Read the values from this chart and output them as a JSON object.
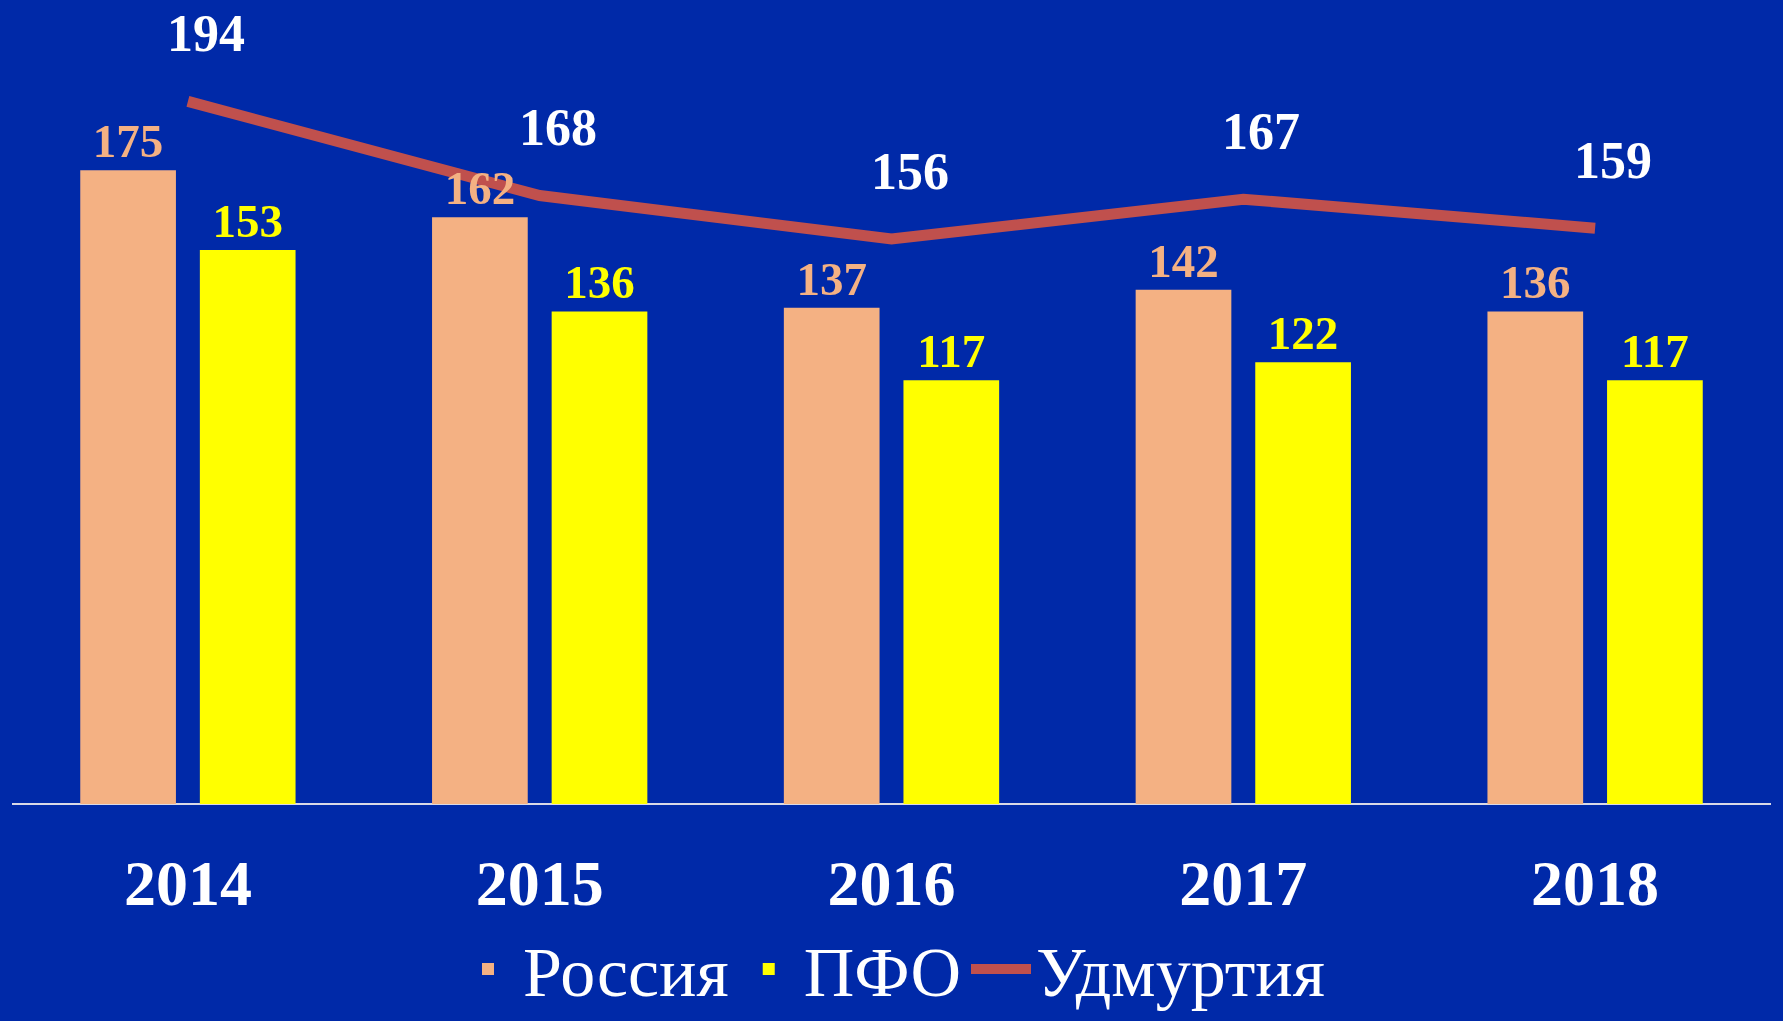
{
  "chart_data": {
    "type": "bar",
    "categories": [
      "2014",
      "2015",
      "2016",
      "2017",
      "2018"
    ],
    "series": [
      {
        "name": "Россия",
        "color": "#f4b183",
        "values": [
          175,
          162,
          137,
          142,
          136
        ]
      },
      {
        "name": "ПФО",
        "color": "#ffff00",
        "values": [
          153,
          136,
          117,
          122,
          117
        ]
      },
      {
        "name": "Удмуртия",
        "type": "line",
        "color": "#c0504d",
        "values": [
          194,
          168,
          156,
          167,
          159
        ],
        "marker": "none",
        "line_style": "solid"
      }
    ],
    "ylim": [
      0,
      222
    ],
    "data_labels": true,
    "grid": false,
    "legend": "bottom",
    "tick_labels": "x"
  }
}
